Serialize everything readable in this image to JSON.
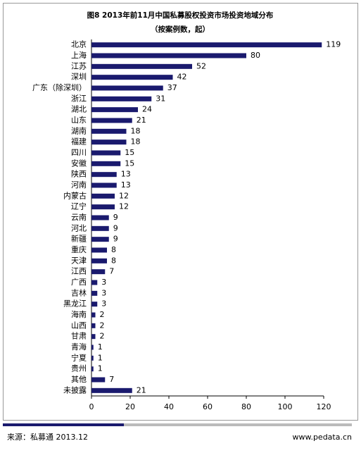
{
  "chart_data": {
    "type": "bar",
    "orientation": "horizontal",
    "title": "图8 2013年前11月中国私募股权投资市场投资地域分布",
    "subtitle": "（按案例数，起）",
    "categories": [
      "北京",
      "上海",
      "江苏",
      "深圳",
      "广东（除深圳）",
      "浙江",
      "湖北",
      "山东",
      "湖南",
      "福建",
      "四川",
      "安徽",
      "陕西",
      "河南",
      "内蒙古",
      "辽宁",
      "云南",
      "河北",
      "新疆",
      "重庆",
      "天津",
      "江西",
      "广西",
      "吉林",
      "黑龙江",
      "海南",
      "山西",
      "甘肃",
      "青海",
      "宁夏",
      "贵州",
      "其他",
      "未披露"
    ],
    "values": [
      119,
      80,
      52,
      42,
      37,
      31,
      24,
      21,
      18,
      18,
      15,
      15,
      13,
      13,
      12,
      12,
      9,
      9,
      9,
      8,
      8,
      7,
      3,
      3,
      3,
      2,
      2,
      2,
      1,
      1,
      1,
      7,
      21
    ],
    "color": "#1a1a6e",
    "xlim": [
      0,
      120
    ],
    "xticks": [
      0,
      20,
      40,
      60,
      80,
      100,
      120
    ]
  },
  "footer": {
    "source": "来源：私募通  2013.12",
    "website": "www.pedata.cn"
  }
}
